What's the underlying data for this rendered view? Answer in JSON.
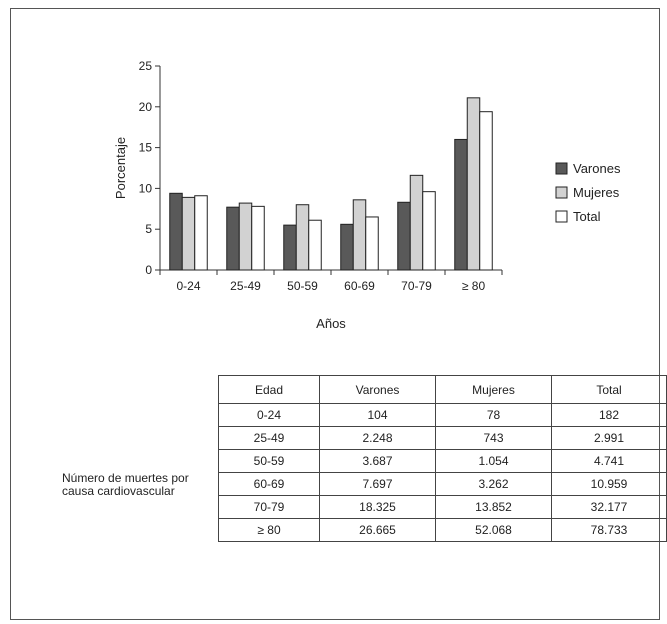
{
  "chart_data": {
    "type": "bar",
    "categories": [
      "0-24",
      "25-49",
      "50-59",
      "60-69",
      "70-79",
      "≥ 80"
    ],
    "series": [
      {
        "name": "Varones",
        "color": "#595959",
        "values": [
          9.4,
          7.7,
          5.5,
          5.6,
          8.3,
          16.0
        ]
      },
      {
        "name": "Mujeres",
        "color": "#d2d2d2",
        "values": [
          8.9,
          8.2,
          8.0,
          8.6,
          11.6,
          21.1
        ]
      },
      {
        "name": "Total",
        "color": "#ffffff",
        "values": [
          9.1,
          7.8,
          6.1,
          6.5,
          9.6,
          19.4
        ]
      }
    ],
    "xlabel": "Años",
    "ylabel": "Porcentaje",
    "ylim": [
      0,
      25
    ],
    "yticks": [
      0,
      5,
      10,
      15,
      20,
      25
    ],
    "legend_position": "right",
    "grid": false
  },
  "table": {
    "label_line1": "Número de muertes por",
    "label_line2": "causa cardiovascular",
    "headers": [
      "Edad",
      "Varones",
      "Mujeres",
      "Total"
    ],
    "rows": [
      [
        "0-24",
        "104",
        "78",
        "182"
      ],
      [
        "25-49",
        "2.248",
        "743",
        "2.991"
      ],
      [
        "50-59",
        "3.687",
        "1.054",
        "4.741"
      ],
      [
        "60-69",
        "7.697",
        "3.262",
        "10.959"
      ],
      [
        "70-79",
        "18.325",
        "13.852",
        "32.177"
      ],
      [
        "≥ 80",
        "26.665",
        "52.068",
        "78.733"
      ]
    ]
  }
}
